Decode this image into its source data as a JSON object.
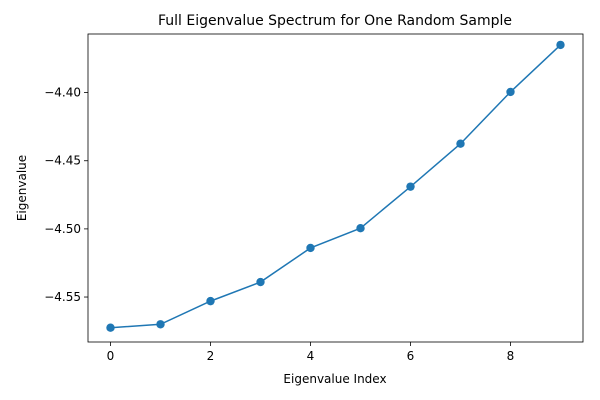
{
  "chart_data": {
    "type": "line",
    "title": "Full Eigenvalue Spectrum for One Random Sample",
    "xlabel": "Eigenvalue Index",
    "ylabel": "Eigenvalue",
    "x": [
      0,
      1,
      2,
      3,
      4,
      5,
      6,
      7,
      8,
      9
    ],
    "series": [
      {
        "values": [
          -4.5725,
          -4.57,
          -4.553,
          -4.539,
          -4.514,
          -4.4995,
          -4.469,
          -4.4375,
          -4.3995,
          -4.365
        ],
        "color": "#1f77b4",
        "marker": "circle"
      }
    ],
    "xlim": [
      -0.45,
      9.45
    ],
    "ylim": [
      -4.583,
      -4.357
    ],
    "xticks": [
      0,
      2,
      4,
      6,
      8
    ],
    "xtick_labels": [
      "0",
      "2",
      "4",
      "6",
      "8"
    ],
    "yticks": [
      -4.55,
      -4.5,
      -4.45,
      -4.4
    ],
    "ytick_labels": [
      "−4.55",
      "−4.50",
      "−4.45",
      "−4.40"
    ],
    "grid": false,
    "legend": false
  }
}
